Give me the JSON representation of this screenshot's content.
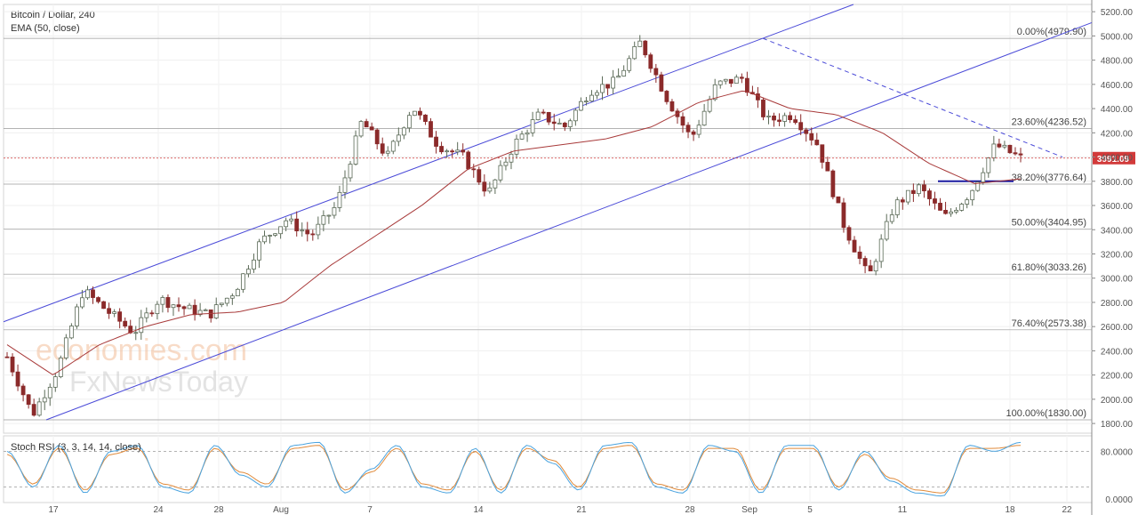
{
  "header": {
    "symbol": "Bitcoin / Dollar, 240",
    "indicator": "EMA (50, close)"
  },
  "stoch_label": "Stoch RSI (3, 3, 14, 14, close)",
  "watermark": {
    "line1": "economies.com",
    "line2": "FxNewsToday"
  },
  "colors": {
    "up": "#5b6a57",
    "down": "#8b2a2a",
    "ema": "#a83a3a",
    "channel": "#4b4bd8",
    "price_line": "#d23a3a",
    "stoch_k": "#4aa3df",
    "stoch_d": "#e08a3a",
    "fib_line": "#9a9a9a"
  },
  "chart_data": {
    "type": "candlestick",
    "title": "Bitcoin / Dollar, 240",
    "y_ticks": [
      1800,
      2000,
      2200,
      2400,
      2600,
      2800,
      3000,
      3200,
      3400,
      3600,
      3800,
      4000,
      4200,
      4400,
      4600,
      4800,
      5000,
      5200
    ],
    "ylim": [
      1720,
      5260
    ],
    "x_ticks": [
      "17",
      "24",
      "28",
      "Aug",
      "7",
      "14",
      "21",
      "28",
      "Sep",
      "5",
      "11",
      "18",
      "22"
    ],
    "last_price": "3991.09",
    "fib_levels": [
      {
        "label": "0.00%(4979.90)",
        "value": 4979.9
      },
      {
        "label": "23.60%(4236.52)",
        "value": 4236.52
      },
      {
        "label": "38.20%(3776.64)",
        "value": 3776.64
      },
      {
        "label": "50.00%(3404.95)",
        "value": 3404.95
      },
      {
        "label": "61.80%(3033.26)",
        "value": 3033.26
      },
      {
        "label": "76.40%(2573.38)",
        "value": 2573.38
      },
      {
        "label": "100.00%(1830.00)",
        "value": 1830.0
      }
    ],
    "key_prices": [
      2350,
      1870,
      2250,
      2900,
      2720,
      2550,
      2830,
      2750,
      2700,
      2900,
      3300,
      3480,
      3350,
      3600,
      4300,
      4000,
      4420,
      4100,
      4000,
      3700,
      4100,
      4350,
      4250,
      4550,
      4620,
      4950,
      4500,
      4150,
      4600,
      4650,
      4300,
      4350,
      4100,
      3450,
      3000,
      3600,
      3750,
      3500,
      3700,
      4100,
      3991
    ],
    "ema_key": [
      2450,
      2200,
      2450,
      2600,
      2700,
      2720,
      2800,
      3100,
      3350,
      3600,
      3900,
      4050,
      4100,
      4150,
      4250,
      4450,
      4550,
      4400,
      4350,
      4200,
      3950,
      3780,
      3820
    ],
    "stoch_ticks": [
      "80.0000",
      "0.0000"
    ],
    "stoch_k_key": [
      80,
      20,
      90,
      10,
      80,
      90,
      20,
      10,
      90,
      40,
      20,
      90,
      95,
      10,
      50,
      90,
      20,
      10,
      85,
      10,
      90,
      60,
      15,
      90,
      95,
      20,
      10,
      90,
      80,
      10,
      90,
      90,
      15,
      80,
      30,
      10,
      5,
      90,
      80,
      95
    ],
    "stoch_d_key": [
      75,
      25,
      85,
      15,
      75,
      85,
      25,
      15,
      85,
      45,
      25,
      85,
      90,
      15,
      45,
      85,
      25,
      15,
      80,
      15,
      85,
      65,
      20,
      85,
      90,
      25,
      15,
      85,
      85,
      15,
      85,
      85,
      20,
      75,
      35,
      15,
      10,
      85,
      85,
      90
    ]
  }
}
